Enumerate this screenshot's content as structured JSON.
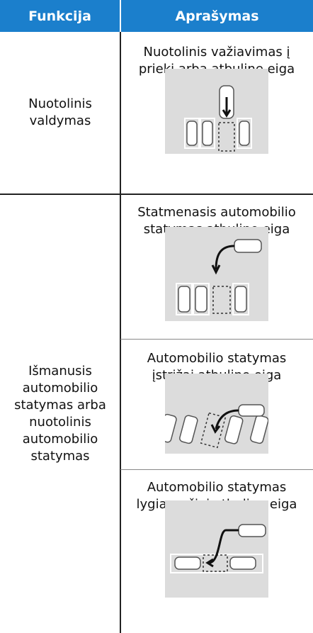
{
  "header": {
    "columns": [
      "Funkcija",
      "Aprašymas"
    ]
  },
  "rows": [
    {
      "function": "Nuotolinis valdymas",
      "descriptions": [
        "Nuotolinis važiavimas į priekį arba atbuline eiga"
      ]
    },
    {
      "function": "Išmanusis automobilio statymas arba nuotolinis automobilio statymas",
      "descriptions": [
        "Statmenasis automobilio statymas atbuline eiga",
        "Automobilio statymas įstrižai atbuline eiga",
        "Automobilio statymas lygiagrečiai atbuline eiga"
      ]
    }
  ]
}
